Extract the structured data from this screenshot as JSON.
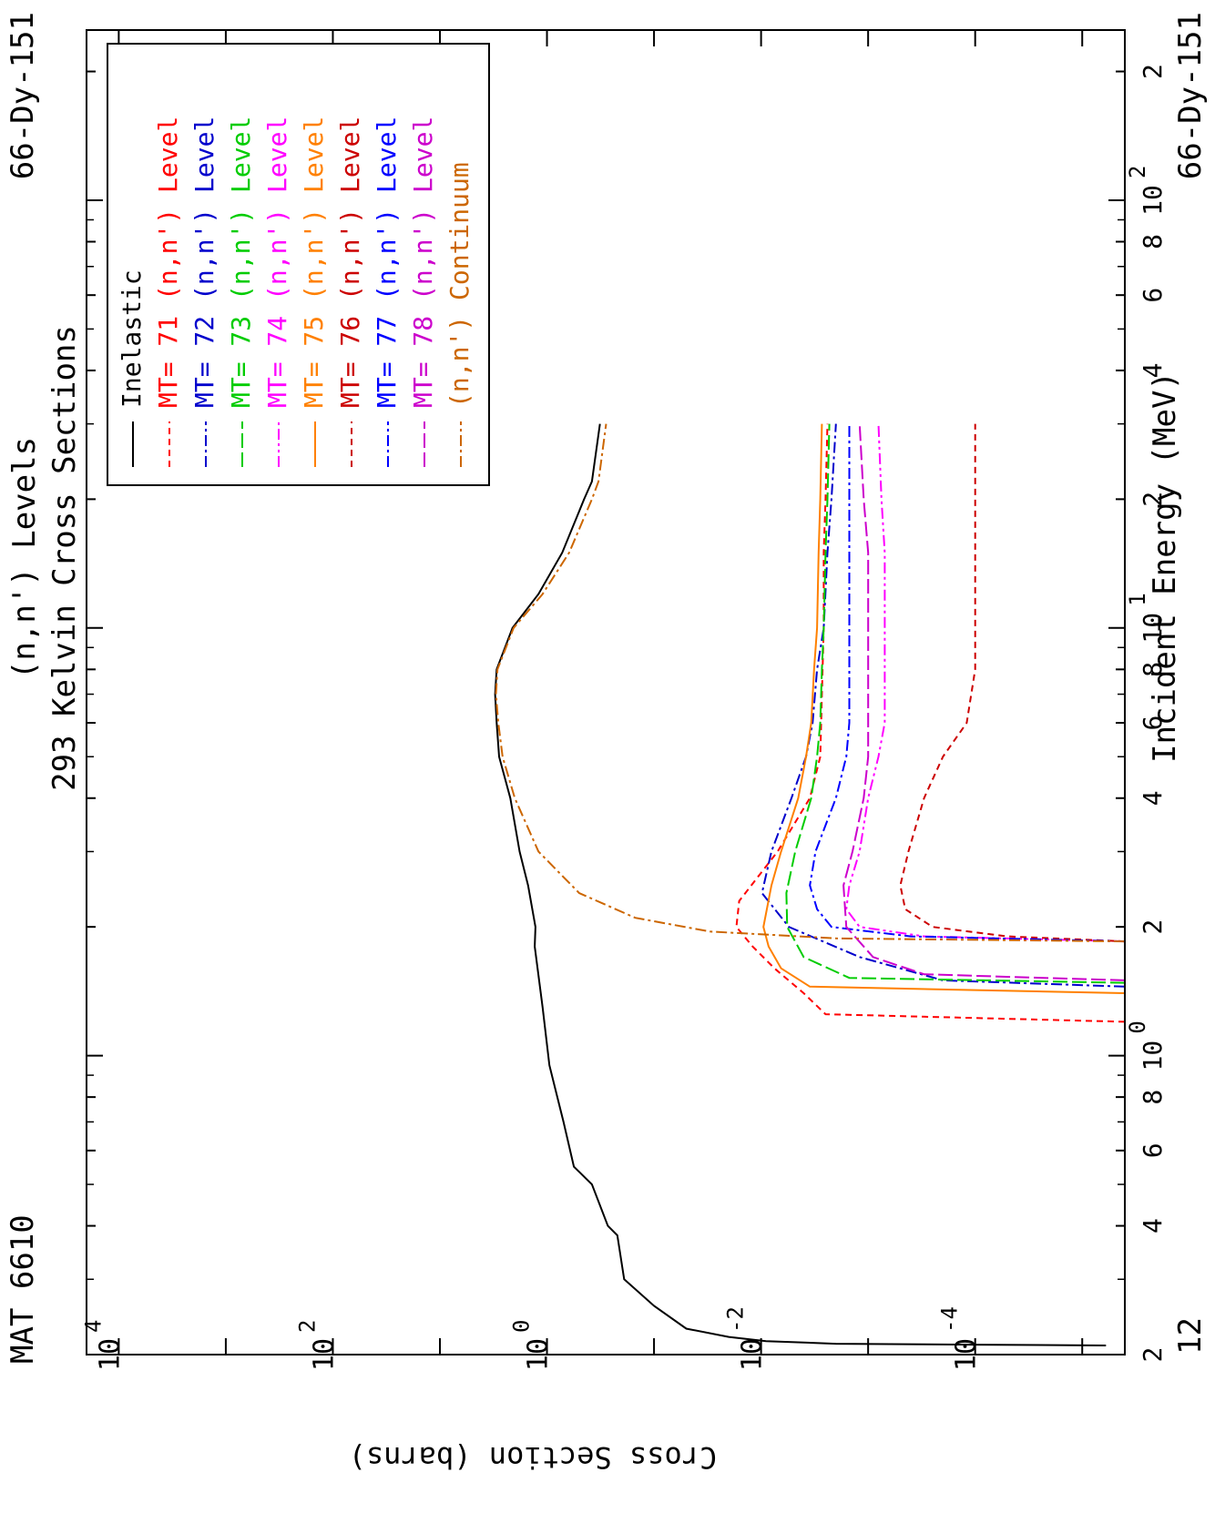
{
  "header": {
    "mat": "MAT 6610",
    "title_line1": "(n,n') Levels",
    "title_line2": "293 Kelvin Cross Sections",
    "nuclide_top": "66-Dy-151",
    "nuclide_bottom": "66-Dy-151",
    "page_number": "12"
  },
  "chart_data": {
    "type": "line",
    "xlabel": "Incident Energy (MeV)",
    "ylabel": "Cross Section (barns)",
    "xscale": "log",
    "yscale": "log",
    "xlim": [
      0.2,
      250
    ],
    "ylim": [
      4e-06,
      20000
    ],
    "x_ticks": [
      {
        "value": 0.2,
        "mant": "2",
        "exp": ""
      },
      {
        "value": 0.4,
        "mant": "4",
        "exp": ""
      },
      {
        "value": 0.6,
        "mant": "6",
        "exp": ""
      },
      {
        "value": 0.8,
        "mant": "8",
        "exp": ""
      },
      {
        "value": 1,
        "mant": "10",
        "exp": "0"
      },
      {
        "value": 2,
        "mant": "2",
        "exp": ""
      },
      {
        "value": 4,
        "mant": "4",
        "exp": ""
      },
      {
        "value": 6,
        "mant": "6",
        "exp": ""
      },
      {
        "value": 8,
        "mant": "8",
        "exp": ""
      },
      {
        "value": 10,
        "mant": "10",
        "exp": "1"
      },
      {
        "value": 20,
        "mant": "2",
        "exp": ""
      },
      {
        "value": 40,
        "mant": "4",
        "exp": ""
      },
      {
        "value": 60,
        "mant": "6",
        "exp": ""
      },
      {
        "value": 80,
        "mant": "8",
        "exp": ""
      },
      {
        "value": 100,
        "mant": "10",
        "exp": "2"
      },
      {
        "value": 200,
        "mant": "2",
        "exp": ""
      }
    ],
    "y_ticks": [
      {
        "value": 10000,
        "mant": "10",
        "exp": "4"
      },
      {
        "value": 100,
        "mant": "10",
        "exp": "2"
      },
      {
        "value": 1,
        "mant": "10",
        "exp": "0"
      },
      {
        "value": 0.01,
        "mant": "10",
        "exp": "-2"
      },
      {
        "value": 0.0001,
        "mant": "10",
        "exp": "-4"
      }
    ],
    "series": [
      {
        "name": "Inelastic",
        "label_color": "#000000",
        "color": "#000000",
        "dash": "",
        "x": [
          0.21,
          0.211,
          0.212,
          0.215,
          0.22,
          0.23,
          0.26,
          0.3,
          0.38,
          0.4,
          0.5,
          0.55,
          0.7,
          0.8,
          0.95,
          1.3,
          1.8,
          2.0,
          2.5,
          3,
          4,
          5,
          6,
          7,
          8,
          10,
          12,
          15,
          20,
          22,
          30
        ],
        "y": [
          6e-06,
          0.0001,
          0.002,
          0.009,
          0.02,
          0.05,
          0.1,
          0.19,
          0.22,
          0.27,
          0.38,
          0.56,
          0.7,
          0.8,
          0.95,
          1.1,
          1.3,
          1.28,
          1.5,
          1.8,
          2.2,
          2.8,
          2.95,
          3.05,
          2.95,
          2.1,
          1.2,
          0.72,
          0.45,
          0.38,
          0.32
        ]
      },
      {
        "name": "(n,n') Level",
        "mt": "71",
        "label_color": "#ff0000",
        "color": "#ff0000",
        "dash": "7,5",
        "x": [
          1.2,
          1.25,
          1.4,
          1.6,
          1.8,
          2.0,
          2.3,
          3,
          4,
          5,
          7,
          10,
          15,
          20,
          30
        ],
        "y": [
          4e-06,
          0.0025,
          0.004,
          0.0075,
          0.012,
          0.017,
          0.016,
          0.007,
          0.0035,
          0.0028,
          0.0027,
          0.0026,
          0.0026,
          0.0025,
          0.0024
        ]
      },
      {
        "name": "(n,n') Level",
        "mt": "72",
        "label_color": "#0000cc",
        "color": "#0000cc",
        "dash": "12,4,3,4",
        "x": [
          1.45,
          1.5,
          1.7,
          2.0,
          2.4,
          3,
          4,
          5,
          6,
          8,
          10,
          15,
          20,
          30
        ],
        "y": [
          4e-06,
          0.0002,
          0.0012,
          0.0055,
          0.0098,
          0.008,
          0.0052,
          0.0038,
          0.0033,
          0.003,
          0.0026,
          0.0024,
          0.0022,
          0.002
        ]
      },
      {
        "name": "(n,n') Level",
        "mt": "73",
        "label_color": "#00cc00",
        "color": "#00cc00",
        "dash": "16,5",
        "x": [
          1.48,
          1.52,
          1.7,
          2.0,
          2.4,
          3,
          4,
          5,
          6,
          8,
          10,
          15,
          20,
          30
        ],
        "y": [
          4e-06,
          0.0015,
          0.004,
          0.0057,
          0.0058,
          0.0048,
          0.0034,
          0.003,
          0.0028,
          0.0027,
          0.0026,
          0.0025,
          0.0024,
          0.0023
        ]
      },
      {
        "name": "(n,n') Level",
        "mt": "74",
        "label_color": "#ff00ff",
        "color": "#ff00ff",
        "dash": "12,4,3,4,3,4",
        "x": [
          1.85,
          1.9,
          2.0,
          2.2,
          2.5,
          3,
          4,
          5,
          6,
          8,
          10,
          15,
          20,
          30
        ],
        "y": [
          4e-06,
          0.0003,
          0.0012,
          0.0016,
          0.0015,
          0.0012,
          0.001,
          0.0008,
          0.0007,
          0.0007,
          0.0007,
          0.0007,
          0.00075,
          0.0008
        ]
      },
      {
        "name": "(n,n') Level",
        "mt": "75",
        "label_color": "#ff8000",
        "color": "#ff8000",
        "dash": "",
        "x": [
          1.4,
          1.45,
          1.6,
          1.8,
          2.0,
          2.5,
          3,
          4,
          5,
          6,
          8,
          10,
          15,
          20,
          30
        ],
        "y": [
          4e-06,
          0.0035,
          0.0065,
          0.0085,
          0.0095,
          0.008,
          0.0065,
          0.0045,
          0.0038,
          0.0034,
          0.0032,
          0.003,
          0.0029,
          0.0028,
          0.0027
        ]
      },
      {
        "name": "(n,n') Level",
        "mt": "76",
        "label_color": "#cc0000",
        "color": "#cc0000",
        "dash": "7,5",
        "x": [
          1.85,
          1.9,
          2.0,
          2.2,
          2.5,
          3,
          4,
          5,
          6,
          8,
          10,
          15,
          20,
          30
        ],
        "y": [
          4e-06,
          5e-05,
          0.00025,
          0.00045,
          0.0005,
          0.00042,
          0.0003,
          0.0002,
          0.00012,
          0.0001,
          0.0001,
          0.0001,
          0.0001,
          0.0001
        ]
      },
      {
        "name": "(n,n') Level",
        "mt": "77",
        "label_color": "#0000ff",
        "color": "#0000ff",
        "dash": "12,4,3,4",
        "x": [
          1.85,
          1.9,
          2.0,
          2.2,
          2.5,
          3,
          4,
          5,
          6,
          8,
          10,
          15,
          20,
          30
        ],
        "y": [
          4e-06,
          0.0004,
          0.0022,
          0.003,
          0.0035,
          0.0031,
          0.002,
          0.0016,
          0.0015,
          0.0015,
          0.0015,
          0.0015,
          0.0015,
          0.0015
        ]
      },
      {
        "name": "(n,n') Level",
        "mt": "78",
        "label_color": "#cc00cc",
        "color": "#cc00cc",
        "dash": "16,5",
        "x": [
          1.5,
          1.55,
          1.7,
          2.0,
          2.5,
          3,
          4,
          5,
          6,
          8,
          10,
          15,
          20,
          30
        ],
        "y": [
          4e-06,
          0.0003,
          0.0009,
          0.0016,
          0.0017,
          0.0014,
          0.0011,
          0.001,
          0.001,
          0.001,
          0.001,
          0.001,
          0.0011,
          0.0012
        ]
      },
      {
        "name": "(n,n') Continuum",
        "mt": "",
        "label_color": "#cc6600",
        "color": "#cc6600",
        "dash": "12,4,3,4",
        "x": [
          1.85,
          1.88,
          1.95,
          2.1,
          2.4,
          3,
          4,
          5,
          6,
          7,
          8,
          10,
          12,
          15,
          20,
          22,
          30
        ],
        "y": [
          4e-06,
          0.002,
          0.03,
          0.15,
          0.5,
          1.2,
          2.0,
          2.6,
          2.85,
          3.0,
          2.9,
          2.05,
          1.1,
          0.62,
          0.38,
          0.33,
          0.28
        ]
      }
    ],
    "legend": {
      "placement": "top-right"
    }
  }
}
